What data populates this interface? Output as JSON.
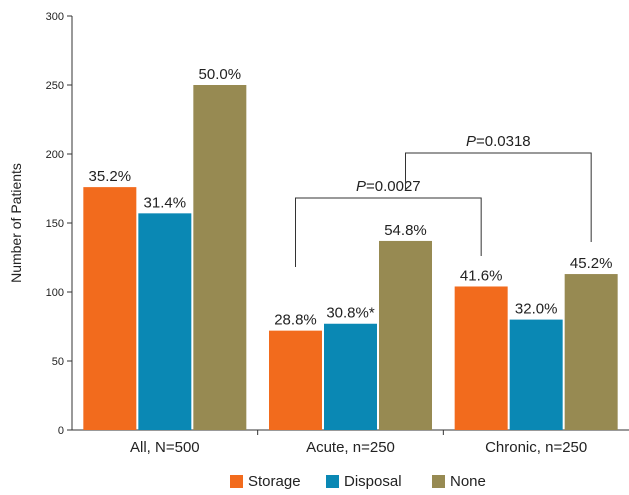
{
  "chart_data": {
    "type": "bar",
    "ylabel": "Number of Patients",
    "ylim": [
      0,
      300
    ],
    "yticks": [
      0,
      50,
      100,
      150,
      200,
      250,
      300
    ],
    "categories": [
      "All, N=500",
      "Acute, n=250",
      "Chronic, n=250"
    ],
    "series": [
      {
        "name": "Storage",
        "color": "#f26b1d",
        "values": [
          176,
          72,
          104
        ],
        "labels": [
          "35.2%",
          "28.8%",
          "41.6%"
        ]
      },
      {
        "name": "Disposal",
        "color": "#0a88b4",
        "values": [
          157,
          77,
          80
        ],
        "labels": [
          "31.4%",
          "30.8%*",
          "32.0%"
        ]
      },
      {
        "name": "None",
        "color": "#978a52",
        "values": [
          250,
          137,
          113
        ],
        "labels": [
          "50.0%",
          "54.8%",
          "45.2%"
        ]
      }
    ],
    "comparisons": [
      {
        "italic": "P",
        "rest": "=0.0027",
        "from_category": 1,
        "from_series": 0,
        "to_category": 2,
        "to_series": 0
      },
      {
        "italic": "P",
        "rest": "=0.0318",
        "from_category": 1,
        "from_series": 2,
        "to_category": 2,
        "to_series": 2
      }
    ],
    "legend_position": "bottom",
    "grid": false
  }
}
